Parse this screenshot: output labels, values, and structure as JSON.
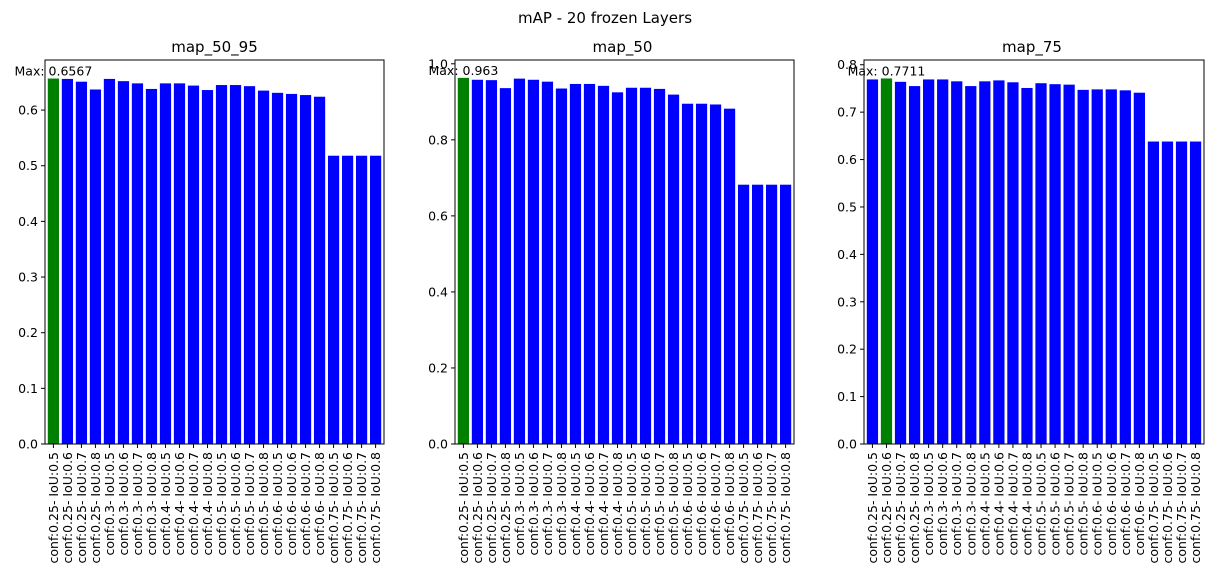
{
  "figure": {
    "title": "mAP - 20 frozen Layers"
  },
  "colors": {
    "bar": "#0000ff",
    "best": "#008000",
    "axis": "#000000"
  },
  "chart_data": [
    {
      "type": "bar",
      "title": "map_50_95",
      "xlabel": "",
      "ylabel": "",
      "ylim": [
        0,
        0.69
      ],
      "yticks": [
        "0.0",
        "0.1",
        "0.2",
        "0.3",
        "0.4",
        "0.5",
        "0.6"
      ],
      "grid": false,
      "categories": [
        "conf:0.25- IoU:0.5",
        "conf:0.25- IoU:0.6",
        "conf:0.25- IoU:0.7",
        "conf:0.25- IoU:0.8",
        "conf:0.3- IoU:0.5",
        "conf:0.3- IoU:0.6",
        "conf:0.3- IoU:0.7",
        "conf:0.3- IoU:0.8",
        "conf:0.4- IoU:0.5",
        "conf:0.4- IoU:0.6",
        "conf:0.4- IoU:0.7",
        "conf:0.4- IoU:0.8",
        "conf:0.5- IoU:0.5",
        "conf:0.5- IoU:0.6",
        "conf:0.5- IoU:0.7",
        "conf:0.5- IoU:0.8",
        "conf:0.6- IoU:0.5",
        "conf:0.6- IoU:0.6",
        "conf:0.6- IoU:0.7",
        "conf:0.6- IoU:0.8",
        "conf:0.75- IoU:0.5",
        "conf:0.75- IoU:0.6",
        "conf:0.75- IoU:0.7",
        "conf:0.75- IoU:0.8"
      ],
      "values": [
        0.6567,
        0.656,
        0.651,
        0.637,
        0.656,
        0.652,
        0.648,
        0.638,
        0.648,
        0.648,
        0.644,
        0.636,
        0.645,
        0.645,
        0.643,
        0.635,
        0.631,
        0.629,
        0.627,
        0.624,
        0.518,
        0.518,
        0.518,
        0.518
      ],
      "max_index": 0,
      "max_label": "Max: 0.6567"
    },
    {
      "type": "bar",
      "title": "map_50",
      "xlabel": "",
      "ylabel": "",
      "ylim": [
        0,
        1.01
      ],
      "yticks": [
        "0.0",
        "0.2",
        "0.4",
        "0.6",
        "0.8",
        "1.0"
      ],
      "grid": false,
      "categories": [
        "conf:0.25- IoU:0.5",
        "conf:0.25- IoU:0.6",
        "conf:0.25- IoU:0.7",
        "conf:0.25- IoU:0.8",
        "conf:0.3- IoU:0.5",
        "conf:0.3- IoU:0.6",
        "conf:0.3- IoU:0.7",
        "conf:0.3- IoU:0.8",
        "conf:0.4- IoU:0.5",
        "conf:0.4- IoU:0.6",
        "conf:0.4- IoU:0.7",
        "conf:0.4- IoU:0.8",
        "conf:0.5- IoU:0.5",
        "conf:0.5- IoU:0.6",
        "conf:0.5- IoU:0.7",
        "conf:0.5- IoU:0.8",
        "conf:0.6- IoU:0.5",
        "conf:0.6- IoU:0.6",
        "conf:0.6- IoU:0.7",
        "conf:0.6- IoU:0.8",
        "conf:0.75- IoU:0.5",
        "conf:0.75- IoU:0.6",
        "conf:0.75- IoU:0.7",
        "conf:0.75- IoU:0.8"
      ],
      "values": [
        0.963,
        0.958,
        0.957,
        0.936,
        0.961,
        0.958,
        0.953,
        0.935,
        0.947,
        0.947,
        0.942,
        0.925,
        0.937,
        0.937,
        0.934,
        0.919,
        0.895,
        0.895,
        0.893,
        0.882,
        0.682,
        0.682,
        0.682,
        0.682
      ],
      "max_index": 0,
      "max_label": "Max: 0.963"
    },
    {
      "type": "bar",
      "title": "map_75",
      "xlabel": "",
      "ylabel": "",
      "ylim": [
        0,
        0.81
      ],
      "yticks": [
        "0.0",
        "0.1",
        "0.2",
        "0.3",
        "0.4",
        "0.5",
        "0.6",
        "0.7",
        "0.8"
      ],
      "grid": false,
      "categories": [
        "conf:0.25- IoU:0.5",
        "conf:0.25- IoU:0.6",
        "conf:0.25- IoU:0.7",
        "conf:0.25- IoU:0.8",
        "conf:0.3- IoU:0.5",
        "conf:0.3- IoU:0.6",
        "conf:0.3- IoU:0.7",
        "conf:0.3- IoU:0.8",
        "conf:0.4- IoU:0.5",
        "conf:0.4- IoU:0.6",
        "conf:0.4- IoU:0.7",
        "conf:0.4- IoU:0.8",
        "conf:0.5- IoU:0.5",
        "conf:0.5- IoU:0.6",
        "conf:0.5- IoU:0.7",
        "conf:0.5- IoU:0.8",
        "conf:0.6- IoU:0.5",
        "conf:0.6- IoU:0.6",
        "conf:0.6- IoU:0.7",
        "conf:0.6- IoU:0.8",
        "conf:0.75- IoU:0.5",
        "conf:0.75- IoU:0.6",
        "conf:0.75- IoU:0.7",
        "conf:0.75- IoU:0.8"
      ],
      "values": [
        0.769,
        0.7711,
        0.764,
        0.755,
        0.769,
        0.769,
        0.765,
        0.755,
        0.765,
        0.767,
        0.763,
        0.751,
        0.761,
        0.759,
        0.758,
        0.747,
        0.748,
        0.748,
        0.746,
        0.741,
        0.638,
        0.638,
        0.638,
        0.638
      ],
      "max_index": 1,
      "max_label": "Max: 0.7711"
    }
  ]
}
